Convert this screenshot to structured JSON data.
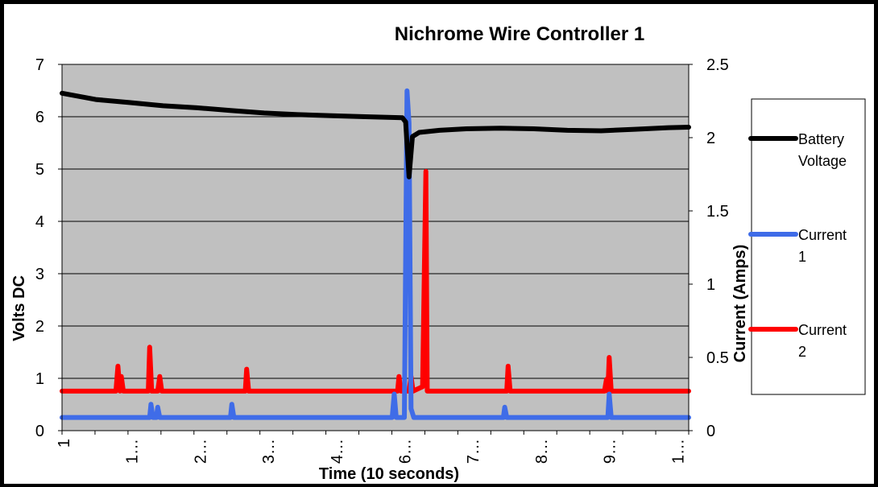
{
  "chart_data": {
    "type": "line",
    "title": "Nichrome Wire Controller 1",
    "xlabel": "Time (10 seconds)",
    "ylabel": "Volts DC",
    "y2label": "Current (Amps)",
    "xlim": [
      1,
      10.3
    ],
    "ylim": [
      0,
      7
    ],
    "y2lim": [
      0,
      2.5
    ],
    "x_tick_labels": [
      "1",
      "1…",
      "2…",
      "3…",
      "4…",
      "6…",
      "7…",
      "8…",
      "9…",
      "1…"
    ],
    "y_tick_labels": [
      "0",
      "1",
      "2",
      "3",
      "4",
      "5",
      "6",
      "7"
    ],
    "y2_tick_labels": [
      "0",
      "0.5",
      "1",
      "1.5",
      "2",
      "2.5"
    ],
    "grid": true,
    "legend_position": "right",
    "colors": {
      "battery": "#000000",
      "current1": "#3F6CE8",
      "current2": "#FF0000",
      "plot_bg": "#C0C0C0"
    },
    "series": [
      {
        "name": "Battery Voltage",
        "axis": "left",
        "color": "#000000",
        "x": [
          1.0,
          1.5,
          2.0,
          2.5,
          3.0,
          3.5,
          4.0,
          4.5,
          5.0,
          5.5,
          6.05,
          6.1,
          6.15,
          6.2,
          6.3,
          6.6,
          7.0,
          7.5,
          8.0,
          8.5,
          9.0,
          9.5,
          10.0,
          10.3
        ],
        "y": [
          6.45,
          6.33,
          6.27,
          6.21,
          6.17,
          6.12,
          6.07,
          6.04,
          6.02,
          6.0,
          5.98,
          5.9,
          4.85,
          5.62,
          5.7,
          5.74,
          5.77,
          5.78,
          5.77,
          5.74,
          5.73,
          5.76,
          5.79,
          5.8
        ]
      },
      {
        "name": "Current 1",
        "axis": "right",
        "color": "#3F6CE8",
        "x": [
          1.0,
          2.3,
          2.32,
          2.35,
          2.4,
          2.42,
          2.45,
          3.5,
          3.52,
          3.55,
          5.9,
          5.93,
          5.96,
          6.08,
          6.12,
          6.15,
          6.18,
          6.22,
          7.55,
          7.57,
          7.6,
          9.1,
          9.12,
          9.15,
          10.3
        ],
        "y": [
          0.09,
          0.09,
          0.18,
          0.09,
          0.09,
          0.16,
          0.09,
          0.09,
          0.18,
          0.09,
          0.09,
          0.25,
          0.09,
          0.09,
          2.32,
          2.1,
          0.15,
          0.09,
          0.09,
          0.16,
          0.09,
          0.09,
          0.25,
          0.09,
          0.09
        ]
      },
      {
        "name": "Current 2",
        "axis": "right",
        "color": "#FF0000",
        "x": [
          1.0,
          1.8,
          1.83,
          1.86,
          1.88,
          1.91,
          2.0,
          2.28,
          2.3,
          2.33,
          2.42,
          2.45,
          2.48,
          3.72,
          3.74,
          3.77,
          5.98,
          6.0,
          6.03,
          6.15,
          6.18,
          6.21,
          6.35,
          6.4,
          6.42,
          6.45,
          7.6,
          7.62,
          7.65,
          9.05,
          9.08,
          9.1,
          9.12,
          9.15,
          10.3
        ],
        "y": [
          0.27,
          0.27,
          0.44,
          0.27,
          0.37,
          0.27,
          0.27,
          0.27,
          0.57,
          0.27,
          0.27,
          0.37,
          0.27,
          0.27,
          0.42,
          0.27,
          0.27,
          0.37,
          0.27,
          0.27,
          0.37,
          0.27,
          0.3,
          1.77,
          0.27,
          0.27,
          0.27,
          0.44,
          0.27,
          0.27,
          0.35,
          0.27,
          0.5,
          0.27,
          0.27
        ]
      }
    ]
  }
}
